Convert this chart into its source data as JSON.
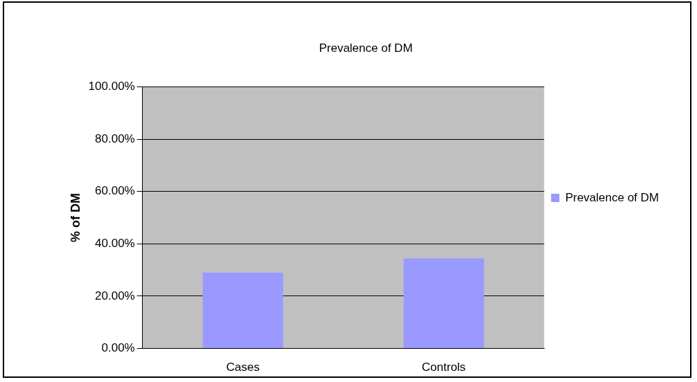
{
  "chart_data": {
    "type": "bar",
    "title": "Prevalence of DM",
    "ylabel": "% of DM",
    "categories": [
      "Cases",
      "Controls"
    ],
    "series": [
      {
        "name": "Prevalence of DM",
        "color": "#9999ff",
        "values": [
          29,
          34.4
        ]
      }
    ],
    "ylim": [
      0,
      100
    ],
    "yticks": [
      {
        "value": 0,
        "label": "0.00%"
      },
      {
        "value": 20,
        "label": "20.00%"
      },
      {
        "value": 40,
        "label": "40.00%"
      },
      {
        "value": 60,
        "label": "60.00%"
      },
      {
        "value": 80,
        "label": "80.00%"
      },
      {
        "value": 100,
        "label": "100.00%"
      }
    ],
    "grid": "y",
    "legend": "right"
  }
}
